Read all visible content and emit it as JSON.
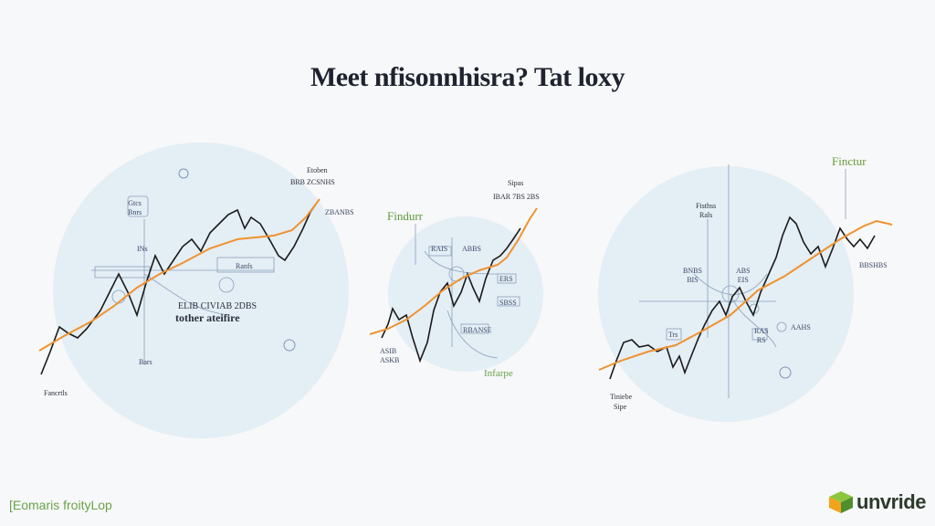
{
  "title": "Meet nfisonnhisra? Tat loxy",
  "panels": [
    {
      "labels": {
        "top_a": "Etoben",
        "top_b": "BRB ZCSNHS",
        "right": "ZBANBS",
        "box1": "Gtcs\nBnrs",
        "box2": "INs",
        "box3": "Ranfs",
        "mid_a": "ELIB CIVIAB 2DBS",
        "mid_b": "tother ateifire",
        "bottom": "Bars",
        "corner": "Fancrtls"
      }
    },
    {
      "labels": {
        "heading": "Findurr",
        "top_a": "Sipas",
        "top_b": "IBAR 7BS 2BS",
        "box1": "RAIS",
        "box2": "ABBS",
        "box3": "ERS",
        "box4": "SBSS",
        "box5": "RBANSE",
        "left": "ASIB",
        "left2": "ASKB",
        "bottom": "Infarpe"
      }
    },
    {
      "labels": {
        "heading": "Finctur",
        "top_a": "Fisthss\nRals",
        "mid_a": "BNBS\nBIS",
        "mid_b": "ABS\nEIS",
        "right": "AAHS",
        "right2": "BBSHBS",
        "box1": "Trs",
        "box2": "RAS\nRS",
        "corner_a": "Tiniebe",
        "corner_b": "Sipe"
      }
    }
  ],
  "footer": {
    "left": "[Eomaris froityLop",
    "brand": "unvride"
  },
  "colors": {
    "circle": "#e6f0f6",
    "black_line": "#1a1a1a",
    "orange_line": "#f0922f",
    "accent_green": "#6aa24a"
  }
}
